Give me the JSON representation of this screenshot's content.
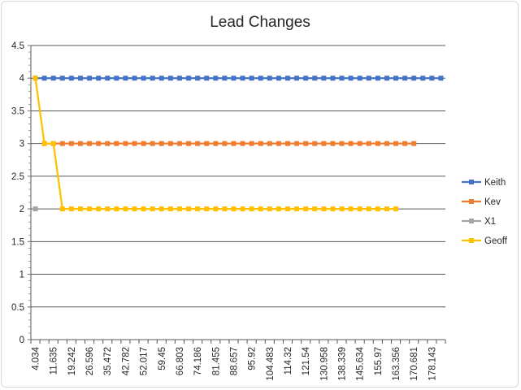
{
  "chart_data": {
    "type": "line",
    "title": "Lead Changes",
    "xlabel": "",
    "ylabel": "",
    "ylim": [
      0,
      4.5
    ],
    "yticks": [
      "0",
      "0.5",
      "1",
      "1.5",
      "2",
      "2.5",
      "3",
      "3.5",
      "4",
      "4.5"
    ],
    "x_tick_labels": [
      "4.034",
      "11.635",
      "19.242",
      "26.596",
      "35.472",
      "42.782",
      "52.017",
      "59.45",
      "66.803",
      "74.186",
      "81.455",
      "88.657",
      "95.92",
      "104.483",
      "114.32",
      "121.54",
      "130.958",
      "138.339",
      "145.634",
      "155.97",
      "163.356",
      "170.681",
      "178.143"
    ],
    "num_points": 46,
    "grid": "horizontal",
    "legend_position": "right",
    "series": [
      {
        "name": "Keith",
        "color": "#4472C4",
        "values": [
          4,
          4,
          4,
          4,
          4,
          4,
          4,
          4,
          4,
          4,
          4,
          4,
          4,
          4,
          4,
          4,
          4,
          4,
          4,
          4,
          4,
          4,
          4,
          4,
          4,
          4,
          4,
          4,
          4,
          4,
          4,
          4,
          4,
          4,
          4,
          4,
          4,
          4,
          4,
          4,
          4,
          4,
          4,
          4,
          4,
          4
        ]
      },
      {
        "name": "Kev",
        "color": "#ED7D31",
        "values": [
          null,
          3,
          3,
          3,
          3,
          3,
          3,
          3,
          3,
          3,
          3,
          3,
          3,
          3,
          3,
          3,
          3,
          3,
          3,
          3,
          3,
          3,
          3,
          3,
          3,
          3,
          3,
          3,
          3,
          3,
          3,
          3,
          3,
          3,
          3,
          3,
          3,
          3,
          3,
          3,
          3,
          3,
          3,
          null,
          null,
          null
        ]
      },
      {
        "name": "X1",
        "color": "#A5A5A5",
        "values": [
          2,
          null,
          null,
          null,
          null,
          null,
          null,
          null,
          null,
          null,
          null,
          null,
          null,
          null,
          null,
          null,
          null,
          null,
          null,
          null,
          null,
          null,
          null,
          null,
          null,
          null,
          null,
          null,
          null,
          null,
          null,
          null,
          null,
          null,
          null,
          null,
          null,
          null,
          null,
          null,
          null,
          null,
          null,
          null,
          null,
          null
        ]
      },
      {
        "name": "Geoff",
        "color": "#FFC000",
        "values": [
          4,
          3,
          3,
          2,
          2,
          2,
          2,
          2,
          2,
          2,
          2,
          2,
          2,
          2,
          2,
          2,
          2,
          2,
          2,
          2,
          2,
          2,
          2,
          2,
          2,
          2,
          2,
          2,
          2,
          2,
          2,
          2,
          2,
          2,
          2,
          2,
          2,
          2,
          2,
          2,
          2,
          null,
          null,
          null,
          null,
          null
        ]
      }
    ]
  }
}
